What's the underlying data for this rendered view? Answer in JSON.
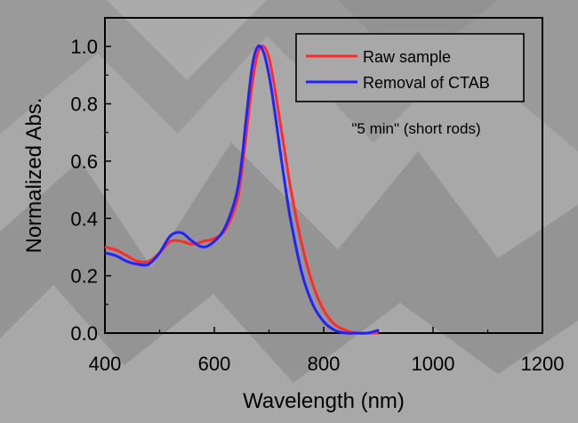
{
  "chart_data": {
    "type": "line",
    "title": "",
    "xlabel": "Wavelength (nm)",
    "ylabel": "Normalized Abs.",
    "xlim": [
      400,
      1200
    ],
    "ylim": [
      0.0,
      1.1
    ],
    "xticks": [
      400,
      600,
      800,
      1000,
      1200
    ],
    "xtick_labels": [
      "400",
      "600",
      "800",
      "1000",
      "1200"
    ],
    "yticks": [
      0.0,
      0.2,
      0.4,
      0.6,
      0.8,
      1.0
    ],
    "ytick_labels": [
      "0.0",
      "0.2",
      "0.4",
      "0.6",
      "0.8",
      "1.0"
    ],
    "legend_position": "top-right",
    "annotation": "\"5 min\" (short rods)",
    "series": [
      {
        "name": "Raw sample",
        "color": "#ff2a2a",
        "x": [
          400,
          420,
          440,
          460,
          480,
          500,
          520,
          540,
          560,
          580,
          600,
          620,
          640,
          650,
          660,
          670,
          680,
          690,
          700,
          710,
          720,
          730,
          740,
          760,
          780,
          800,
          820,
          840,
          860,
          880,
          900
        ],
        "y": [
          0.3,
          0.29,
          0.27,
          0.25,
          0.25,
          0.28,
          0.32,
          0.32,
          0.31,
          0.32,
          0.33,
          0.36,
          0.45,
          0.56,
          0.72,
          0.88,
          0.98,
          1.0,
          0.96,
          0.86,
          0.74,
          0.62,
          0.5,
          0.31,
          0.17,
          0.08,
          0.03,
          0.01,
          0.0,
          0.0,
          0.0
        ]
      },
      {
        "name": "Removal of CTAB",
        "color": "#2222ff",
        "x": [
          400,
          420,
          440,
          460,
          480,
          500,
          520,
          540,
          560,
          580,
          600,
          620,
          640,
          650,
          660,
          670,
          680,
          690,
          700,
          710,
          720,
          730,
          740,
          760,
          780,
          800,
          820,
          840,
          860,
          880,
          900
        ],
        "y": [
          0.28,
          0.27,
          0.25,
          0.24,
          0.24,
          0.28,
          0.34,
          0.35,
          0.32,
          0.3,
          0.32,
          0.37,
          0.48,
          0.6,
          0.78,
          0.94,
          1.0,
          0.98,
          0.9,
          0.78,
          0.64,
          0.51,
          0.39,
          0.21,
          0.1,
          0.04,
          0.01,
          0.0,
          0.0,
          0.0,
          0.01
        ]
      }
    ]
  }
}
